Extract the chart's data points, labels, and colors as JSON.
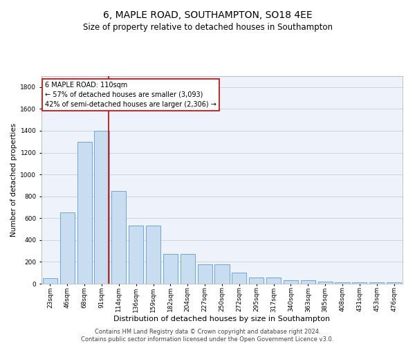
{
  "title": "6, MAPLE ROAD, SOUTHAMPTON, SO18 4EE",
  "subtitle": "Size of property relative to detached houses in Southampton",
  "xlabel": "Distribution of detached houses by size in Southampton",
  "ylabel": "Number of detached properties",
  "categories": [
    "23sqm",
    "46sqm",
    "68sqm",
    "91sqm",
    "114sqm",
    "136sqm",
    "159sqm",
    "182sqm",
    "204sqm",
    "227sqm",
    "250sqm",
    "272sqm",
    "295sqm",
    "317sqm",
    "340sqm",
    "363sqm",
    "385sqm",
    "408sqm",
    "431sqm",
    "453sqm",
    "476sqm"
  ],
  "values": [
    50,
    650,
    1300,
    1400,
    850,
    530,
    530,
    270,
    270,
    180,
    180,
    100,
    60,
    60,
    30,
    30,
    20,
    15,
    10,
    10,
    10
  ],
  "bar_color": "#c9ddf0",
  "bar_edge_color": "#5b9bd5",
  "vline_color": "#cc0000",
  "annotation_line1": "6 MAPLE ROAD: 110sqm",
  "annotation_line2": "← 57% of detached houses are smaller (3,093)",
  "annotation_line3": "42% of semi-detached houses are larger (2,306) →",
  "annotation_box_facecolor": "#ffffff",
  "annotation_box_edgecolor": "#cc0000",
  "ylim": [
    0,
    1900
  ],
  "yticks": [
    0,
    200,
    400,
    600,
    800,
    1000,
    1200,
    1400,
    1600,
    1800
  ],
  "grid_color": "#cccccc",
  "bg_color": "#eef2fb",
  "footnote1": "Contains HM Land Registry data © Crown copyright and database right 2024.",
  "footnote2": "Contains public sector information licensed under the Open Government Licence v3.0.",
  "title_fontsize": 10,
  "subtitle_fontsize": 8.5,
  "xlabel_fontsize": 8,
  "ylabel_fontsize": 7.5,
  "tick_fontsize": 6.5,
  "annot_fontsize": 7,
  "footnote_fontsize": 6
}
